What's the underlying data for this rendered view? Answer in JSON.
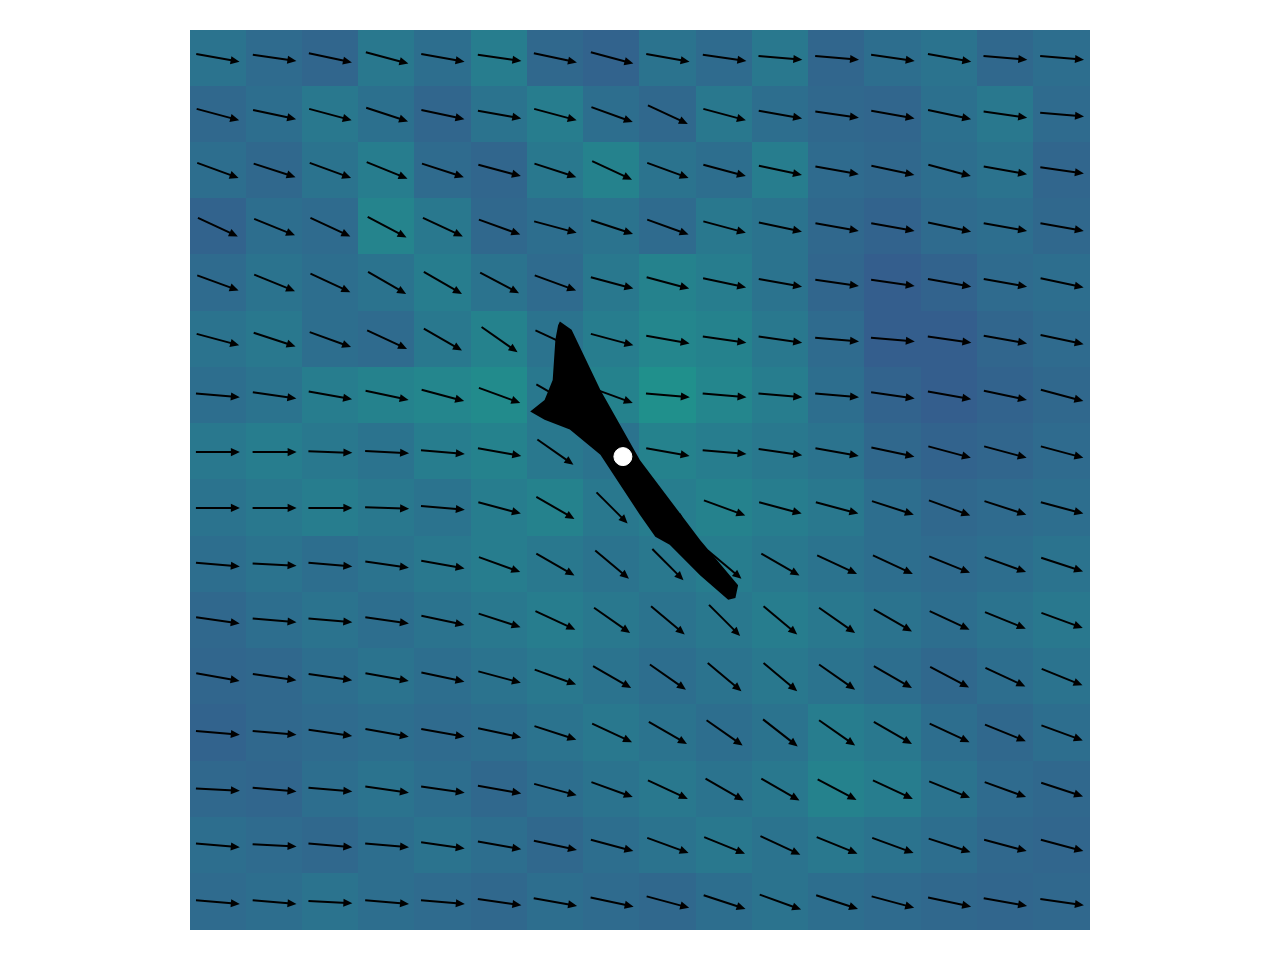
{
  "chart_data": {
    "type": "quiver",
    "xlim": [
      0,
      1
    ],
    "ylim": [
      0,
      1
    ],
    "tick_labels": false,
    "grid": false,
    "color": "#000000",
    "x": [
      0.031,
      0.094,
      0.156,
      0.219,
      0.281,
      0.344,
      0.406,
      0.469,
      0.531,
      0.594,
      0.656,
      0.719,
      0.781,
      0.844,
      0.906,
      0.969
    ],
    "y": [
      0.969,
      0.906,
      0.844,
      0.781,
      0.719,
      0.656,
      0.594,
      0.531,
      0.469,
      0.406,
      0.344,
      0.281,
      0.219,
      0.156,
      0.094,
      0.031
    ],
    "angles": [
      [
        -10,
        -8,
        -12,
        -15,
        -10,
        -8,
        -12,
        -15,
        -10,
        -8,
        -5,
        -5,
        -8,
        -10,
        -5,
        -5
      ],
      [
        -15,
        -12,
        -15,
        -18,
        -12,
        -10,
        -15,
        -20,
        -25,
        -15,
        -10,
        -8,
        -10,
        -12,
        -8,
        -5
      ],
      [
        -20,
        -18,
        -20,
        -22,
        -18,
        -15,
        -18,
        -25,
        -20,
        -15,
        -12,
        -10,
        -12,
        -15,
        -10,
        -8
      ],
      [
        -25,
        -22,
        -25,
        -28,
        -25,
        -20,
        -15,
        -18,
        -20,
        -15,
        -12,
        -10,
        -10,
        -12,
        -10,
        -10
      ],
      [
        -20,
        -22,
        -25,
        -30,
        -30,
        -28,
        -20,
        -15,
        -15,
        -12,
        -10,
        -8,
        -8,
        -10,
        -10,
        -12
      ],
      [
        -15,
        -18,
        -20,
        -25,
        -30,
        -35,
        -25,
        -15,
        -10,
        -8,
        -8,
        -5,
        -5,
        -8,
        -10,
        -12
      ],
      [
        -5,
        -8,
        -10,
        -12,
        -15,
        -20,
        -30,
        -20,
        -5,
        -5,
        -5,
        -5,
        -8,
        -10,
        -12,
        -15
      ],
      [
        0,
        0,
        -2,
        -3,
        -5,
        -10,
        -35,
        -40,
        -10,
        -5,
        -8,
        -10,
        -12,
        -15,
        -15,
        -15
      ],
      [
        0,
        0,
        0,
        -2,
        -5,
        -15,
        -30,
        -45,
        -40,
        -20,
        -15,
        -15,
        -18,
        -20,
        -18,
        -15
      ],
      [
        -5,
        -3,
        -5,
        -8,
        -10,
        -20,
        -30,
        -40,
        -45,
        -40,
        -30,
        -25,
        -25,
        -22,
        -20,
        -18
      ],
      [
        -8,
        -5,
        -5,
        -8,
        -12,
        -18,
        -25,
        -35,
        -40,
        -45,
        -40,
        -35,
        -30,
        -25,
        -22,
        -20
      ],
      [
        -10,
        -8,
        -8,
        -10,
        -12,
        -15,
        -20,
        -30,
        -35,
        -40,
        -40,
        -35,
        -30,
        -28,
        -25,
        -22
      ],
      [
        -5,
        -5,
        -8,
        -10,
        -10,
        -12,
        -18,
        -25,
        -30,
        -35,
        -38,
        -35,
        -30,
        -25,
        -22,
        -20
      ],
      [
        -3,
        -5,
        -5,
        -8,
        -8,
        -10,
        -15,
        -20,
        -25,
        -30,
        -30,
        -28,
        -25,
        -22,
        -20,
        -18
      ],
      [
        -5,
        -3,
        -5,
        -5,
        -8,
        -10,
        -12,
        -15,
        -20,
        -22,
        -25,
        -22,
        -20,
        -18,
        -15,
        -15
      ],
      [
        -5,
        -5,
        -3,
        -5,
        -5,
        -8,
        -10,
        -12,
        -15,
        -18,
        -20,
        -18,
        -15,
        -12,
        -10,
        -8
      ]
    ],
    "cells": [
      [
        0.38,
        0.35,
        0.33,
        0.4,
        0.36,
        0.42,
        0.34,
        0.32,
        0.38,
        0.35,
        0.4,
        0.33,
        0.36,
        0.38,
        0.34,
        0.36
      ],
      [
        0.34,
        0.36,
        0.4,
        0.37,
        0.33,
        0.38,
        0.42,
        0.36,
        0.34,
        0.4,
        0.36,
        0.34,
        0.33,
        0.37,
        0.4,
        0.35
      ],
      [
        0.36,
        0.34,
        0.38,
        0.42,
        0.35,
        0.33,
        0.4,
        0.44,
        0.38,
        0.36,
        0.42,
        0.35,
        0.34,
        0.36,
        0.38,
        0.33
      ],
      [
        0.32,
        0.36,
        0.35,
        0.45,
        0.4,
        0.34,
        0.36,
        0.38,
        0.35,
        0.4,
        0.38,
        0.34,
        0.32,
        0.35,
        0.36,
        0.34
      ],
      [
        0.35,
        0.38,
        0.36,
        0.38,
        0.42,
        0.38,
        0.35,
        0.4,
        0.44,
        0.42,
        0.38,
        0.33,
        0.3,
        0.32,
        0.35,
        0.36
      ],
      [
        0.38,
        0.4,
        0.36,
        0.35,
        0.4,
        0.44,
        0.38,
        0.42,
        0.46,
        0.44,
        0.4,
        0.35,
        0.3,
        0.3,
        0.33,
        0.35
      ],
      [
        0.36,
        0.38,
        0.42,
        0.44,
        0.46,
        0.48,
        0.4,
        0.44,
        0.5,
        0.46,
        0.42,
        0.36,
        0.32,
        0.3,
        0.32,
        0.34
      ],
      [
        0.4,
        0.42,
        0.4,
        0.38,
        0.42,
        0.44,
        0.4,
        0.38,
        0.44,
        0.42,
        0.4,
        0.38,
        0.34,
        0.32,
        0.33,
        0.35
      ],
      [
        0.38,
        0.4,
        0.42,
        0.4,
        0.38,
        0.42,
        0.44,
        0.4,
        0.42,
        0.44,
        0.42,
        0.4,
        0.36,
        0.34,
        0.35,
        0.36
      ],
      [
        0.36,
        0.38,
        0.36,
        0.38,
        0.4,
        0.42,
        0.4,
        0.38,
        0.4,
        0.42,
        0.4,
        0.38,
        0.36,
        0.35,
        0.36,
        0.38
      ],
      [
        0.34,
        0.36,
        0.38,
        0.36,
        0.38,
        0.4,
        0.42,
        0.4,
        0.38,
        0.4,
        0.42,
        0.4,
        0.38,
        0.36,
        0.38,
        0.4
      ],
      [
        0.33,
        0.34,
        0.36,
        0.38,
        0.36,
        0.38,
        0.4,
        0.38,
        0.36,
        0.38,
        0.4,
        0.38,
        0.36,
        0.34,
        0.36,
        0.38
      ],
      [
        0.32,
        0.34,
        0.35,
        0.36,
        0.35,
        0.36,
        0.38,
        0.4,
        0.38,
        0.36,
        0.38,
        0.42,
        0.4,
        0.36,
        0.34,
        0.36
      ],
      [
        0.34,
        0.33,
        0.36,
        0.38,
        0.36,
        0.34,
        0.36,
        0.38,
        0.4,
        0.38,
        0.4,
        0.44,
        0.42,
        0.38,
        0.35,
        0.34
      ],
      [
        0.36,
        0.35,
        0.34,
        0.36,
        0.38,
        0.36,
        0.34,
        0.36,
        0.38,
        0.4,
        0.38,
        0.4,
        0.38,
        0.36,
        0.34,
        0.33
      ],
      [
        0.35,
        0.36,
        0.38,
        0.36,
        0.35,
        0.34,
        0.36,
        0.35,
        0.34,
        0.36,
        0.38,
        0.36,
        0.35,
        0.34,
        0.33,
        0.34
      ]
    ],
    "color_range": [
      0,
      1
    ],
    "body": {
      "color": "#000000",
      "x": [
        0.411,
        0.424,
        0.456,
        0.5,
        0.567,
        0.609,
        0.606,
        0.598,
        0.567,
        0.533,
        0.517,
        0.5,
        0.456,
        0.422,
        0.394,
        0.378,
        0.394,
        0.403,
        0.406,
        0.409
      ],
      "y": [
        0.676,
        0.667,
        0.6,
        0.522,
        0.433,
        0.383,
        0.369,
        0.367,
        0.394,
        0.428,
        0.437,
        0.461,
        0.528,
        0.556,
        0.567,
        0.576,
        0.589,
        0.611,
        0.656,
        0.672
      ]
    },
    "point": {
      "x": 0.481,
      "y": 0.526,
      "color": "#ffffff"
    }
  }
}
